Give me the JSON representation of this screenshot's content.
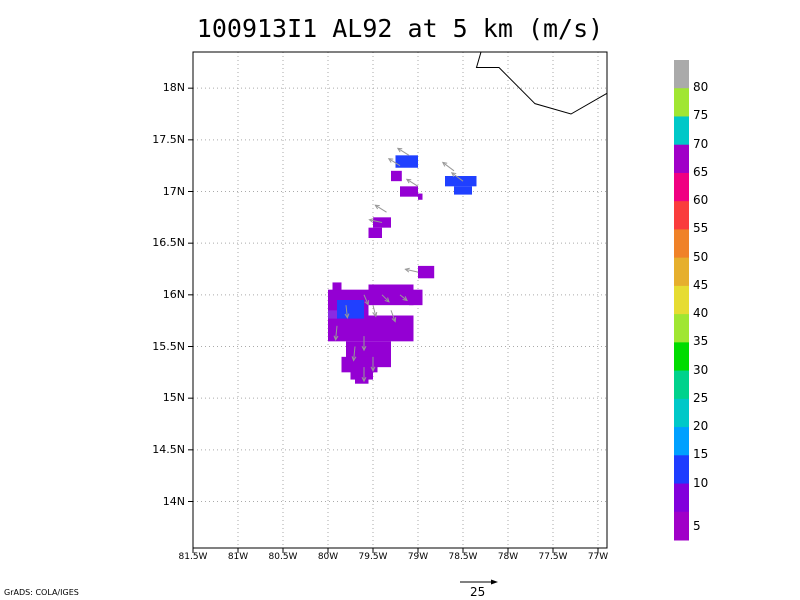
{
  "title": "100913I1 AL92 at 5 km (m/s)",
  "credit": "GrADS: COLA/IGES",
  "reference_vector": {
    "label": "25"
  },
  "map": {
    "lon_range": [
      -81.5,
      -76.9
    ],
    "lat_range": [
      13.55,
      18.35
    ],
    "x_ticks": [
      "81.5W",
      "81W",
      "80.5W",
      "80W",
      "79.5W",
      "79W",
      "78.5W",
      "78W",
      "77.5W",
      "77W"
    ],
    "y_ticks": [
      "14N",
      "14.5N",
      "15N",
      "15.5N",
      "16N",
      "16.5N",
      "17N",
      "17.5N",
      "18N"
    ],
    "grid": true,
    "coastline": [
      [
        -78.3,
        18.35
      ],
      [
        -78.35,
        18.2
      ],
      [
        -78.1,
        18.2
      ],
      [
        -77.7,
        17.85
      ],
      [
        -77.3,
        17.75
      ],
      [
        -76.9,
        17.95
      ]
    ]
  },
  "colorbar": {
    "labels": [
      "5",
      "10",
      "15",
      "20",
      "25",
      "30",
      "35",
      "40",
      "45",
      "50",
      "55",
      "60",
      "65",
      "70",
      "75",
      "80"
    ],
    "colors": [
      "#a000c8",
      "#8200dc",
      "#1e3cff",
      "#00a0ff",
      "#00c8c8",
      "#00d28c",
      "#00dc00",
      "#a0e632",
      "#e6dc32",
      "#e6af2d",
      "#f08228",
      "#fa3c3c",
      "#f00082",
      "#a000c8",
      "#00c8c8",
      "#a0e632",
      "#aaaaaa"
    ]
  },
  "wind_colors": {
    "weak": "#9400d3",
    "moderate": "#8a2be2",
    "strong": "#2040ff"
  }
}
